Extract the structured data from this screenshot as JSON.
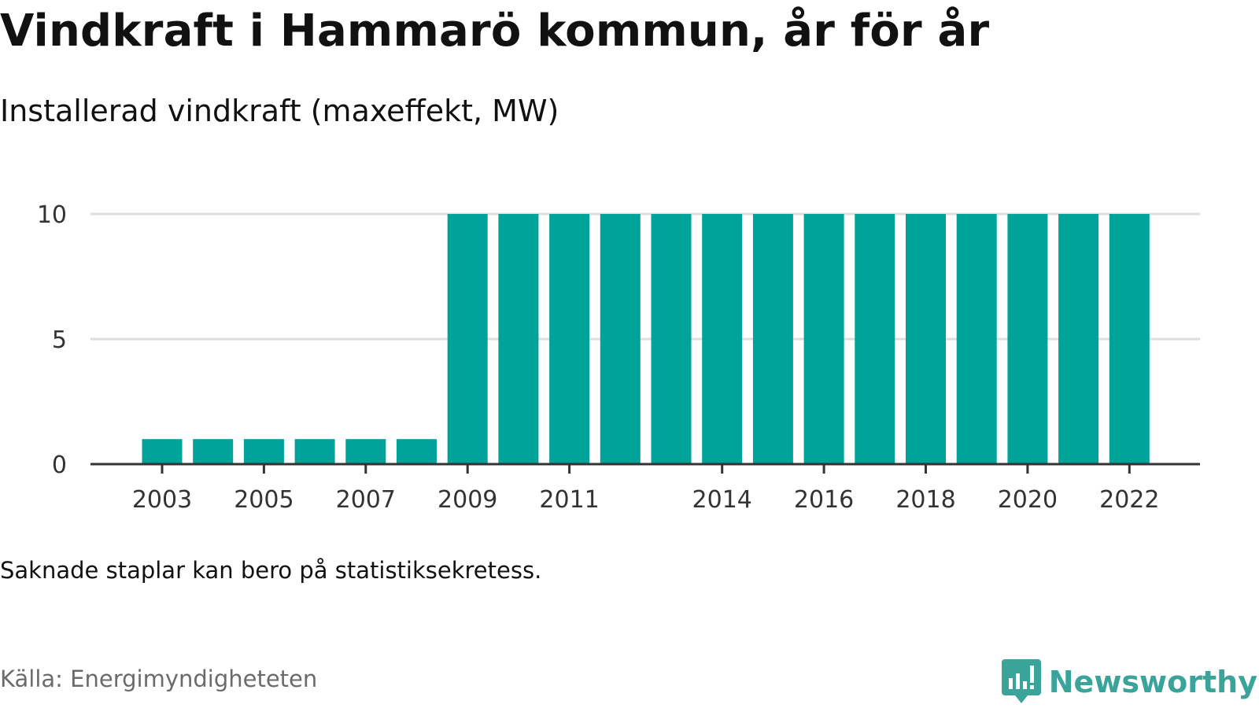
{
  "title": "Vindkraft i Hammarö kommun, år för år",
  "subtitle": "Installerad vindkraft (maxeffekt, MW)",
  "note": "Saknade staplar kan bero på statistiksekretess.",
  "source": "Källa: Energimyndigheteten",
  "logo": {
    "name": "Newsworthy",
    "icon": "newsworthy-logo-icon"
  },
  "colors": {
    "bar": "#00a39a",
    "grid": "#dddddd",
    "axis": "#333333",
    "brand": "#3aa39a"
  },
  "chart_data": {
    "type": "bar",
    "categories": [
      "2003",
      "2004",
      "2005",
      "2006",
      "2007",
      "2008",
      "2009",
      "2010",
      "2011",
      "2012",
      "2013",
      "2014",
      "2015",
      "2016",
      "2017",
      "2018",
      "2019",
      "2020",
      "2021",
      "2022"
    ],
    "values": [
      1,
      1,
      1,
      1,
      1,
      1,
      10,
      10,
      10,
      10,
      10,
      10,
      10,
      10,
      10,
      10,
      10,
      10,
      10,
      10
    ],
    "x_tick_labels": [
      "2003",
      "2005",
      "2007",
      "2009",
      "2011",
      "2014",
      "2016",
      "2018",
      "2020",
      "2022"
    ],
    "y_ticks": [
      0,
      5,
      10
    ],
    "ylim": [
      0,
      10
    ],
    "grid": true,
    "xlabel": "",
    "ylabel": ""
  }
}
